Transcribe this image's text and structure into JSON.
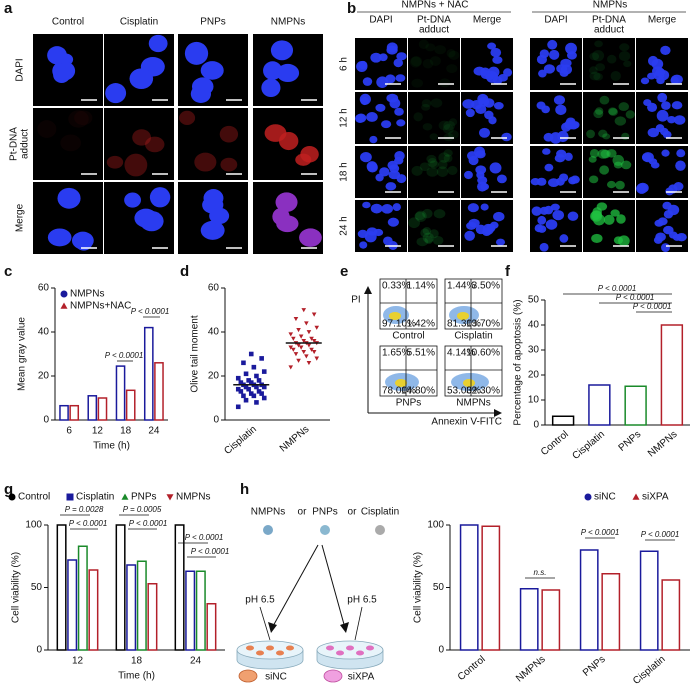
{
  "panel_labels": [
    "a",
    "b",
    "c",
    "d",
    "e",
    "f",
    "g",
    "h"
  ],
  "a": {
    "columns": [
      "Control",
      "Cisplatin",
      "PNPs",
      "NMPNs"
    ],
    "rows": [
      "DAPI",
      [
        "Pt-DNA",
        "adduct"
      ],
      "Merge"
    ]
  },
  "b": {
    "groups": [
      "NMPNs + NAC",
      "NMPNs"
    ],
    "columns": [
      "DAPI",
      [
        "Pt-DNA",
        "adduct"
      ],
      "Merge"
    ],
    "rows": [
      "6 h",
      "12 h",
      "18 h",
      "24 h"
    ]
  },
  "e": {
    "ylabel": "PI",
    "xlabel": "Annexin V-FITC",
    "plots": [
      {
        "label": "Control",
        "quadrants": [
          "0.33%",
          "1.14%",
          "97.10%",
          "1.42%"
        ]
      },
      {
        "label": "Cisplatin",
        "quadrants": [
          "1.44%",
          "3.50%",
          "81.30%",
          "13.70%"
        ]
      },
      {
        "label": "PNPs",
        "quadrants": [
          "1.65%",
          "5.51%",
          "78.00%",
          "14.80%"
        ]
      },
      {
        "label": "NMPNs",
        "quadrants": [
          "4.14%",
          "10.60%",
          "53.00%",
          "32.30%"
        ]
      }
    ]
  },
  "h_diagram": {
    "agents": [
      "NMPNs",
      "PNPs",
      "Cisplatin"
    ],
    "or": [
      "or",
      "or"
    ],
    "ph": [
      "pH 6.5",
      "pH 6.5"
    ],
    "cells": [
      "siNC",
      "siXPA"
    ]
  },
  "chart_data": [
    {
      "type": "bar",
      "ylabel": "Mean gray value",
      "xlabel": "Time (h)",
      "categories": [
        "6",
        "12",
        "18",
        "24"
      ],
      "series": [
        {
          "name": "NMPNs",
          "color": "#1a1a9c",
          "values": [
            6.5,
            11,
            24.5,
            42
          ]
        },
        {
          "name": "NMPNs+NAC",
          "color": "#b3202a",
          "values": [
            6.5,
            10,
            13.5,
            26
          ]
        }
      ],
      "ylim": [
        0,
        60
      ],
      "yticks": [
        0,
        20,
        40,
        60
      ],
      "annotations": [
        "P < 0.0001",
        "P < 0.0001"
      ]
    },
    {
      "type": "strip",
      "ylabel": "Olive tail moment",
      "categories": [
        "Cisplatin",
        "NMPNs"
      ],
      "series": [
        {
          "color": "#1a1a9c",
          "values": [
            6,
            8,
            9,
            10,
            11,
            11,
            12,
            12,
            13,
            13,
            14,
            14,
            15,
            15,
            15,
            16,
            16,
            16,
            17,
            17,
            18,
            18,
            19,
            20,
            21,
            22,
            24,
            26,
            28,
            30
          ],
          "mean": 16
        },
        {
          "color": "#b3202a",
          "values": [
            24,
            26,
            27,
            28,
            29,
            30,
            31,
            31,
            32,
            32,
            33,
            33,
            34,
            34,
            35,
            35,
            35,
            36,
            36,
            37,
            37,
            38,
            39,
            40,
            41,
            42,
            44,
            46,
            48,
            50
          ],
          "mean": 35
        }
      ],
      "ylim": [
        0,
        60
      ],
      "yticks": [
        0,
        20,
        40,
        60
      ]
    },
    {
      "type": "bar",
      "ylabel": "Percentage of apoptosis (%)",
      "categories": [
        "Control",
        "Cisplatin",
        "PNPs",
        "NMPNs"
      ],
      "values": [
        3.5,
        16,
        15.5,
        40
      ],
      "colors": [
        "#000000",
        "#1a1a9c",
        "#1a8a2a",
        "#b3202a"
      ],
      "ylim": [
        0,
        50
      ],
      "yticks": [
        0,
        10,
        20,
        30,
        40,
        50
      ],
      "annotations": [
        "P < 0.0001",
        "P < 0.0001",
        "P < 0.0001"
      ]
    },
    {
      "type": "bar",
      "ylabel": "Cell viability (%)",
      "xlabel": "Time (h)",
      "categories": [
        "12",
        "18",
        "24"
      ],
      "series": [
        {
          "name": "Control",
          "color": "#000000",
          "values": [
            100,
            100,
            100
          ]
        },
        {
          "name": "Cisplatin",
          "color": "#1a1a9c",
          "values": [
            72,
            68,
            63
          ]
        },
        {
          "name": "PNPs",
          "color": "#1a8a2a",
          "values": [
            83,
            71,
            63
          ]
        },
        {
          "name": "NMPNs",
          "color": "#b3202a",
          "values": [
            64,
            53,
            37
          ]
        }
      ],
      "ylim": [
        0,
        100
      ],
      "yticks": [
        0,
        50,
        100
      ],
      "annotations": [
        "P = 0.0028",
        "P < 0.0001",
        "P = 0.0005",
        "P < 0.0001",
        "P < 0.0001",
        "P < 0.0001"
      ]
    },
    {
      "type": "bar",
      "ylabel": "Cell viability (%)",
      "categories": [
        "Control",
        "NMPNs",
        "PNPs",
        "Cisplatin"
      ],
      "series": [
        {
          "name": "siNC",
          "color": "#1a1a9c",
          "values": [
            100,
            49,
            80,
            79
          ]
        },
        {
          "name": "siXPA",
          "color": "#b3202a",
          "values": [
            99,
            48,
            61,
            56
          ]
        }
      ],
      "ylim": [
        0,
        100
      ],
      "yticks": [
        0,
        50,
        100
      ],
      "annotations": [
        "n.s.",
        "P < 0.0001",
        "P < 0.0001"
      ]
    }
  ]
}
